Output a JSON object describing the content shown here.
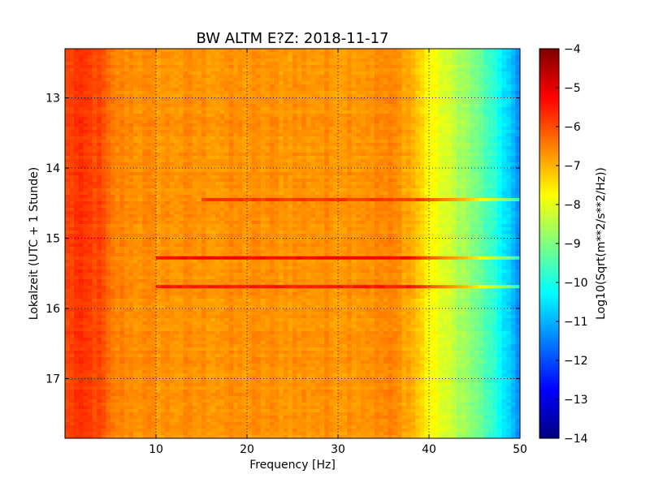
{
  "chart_data": {
    "type": "heatmap",
    "title": "BW ALTM E?Z: 2018-11-17",
    "xlabel": "Frequency [Hz]",
    "ylabel": "Lokalzeit (UTC + 1 Stunde)",
    "xlim": [
      0,
      50
    ],
    "ylim": [
      12.3,
      17.85
    ],
    "x_ticks": [
      {
        "value": 10,
        "label": "10"
      },
      {
        "value": 20,
        "label": "20"
      },
      {
        "value": 30,
        "label": "30"
      },
      {
        "value": 40,
        "label": "40"
      },
      {
        "value": 50,
        "label": "50"
      }
    ],
    "y_ticks": [
      {
        "value": 13,
        "label": "13"
      },
      {
        "value": 14,
        "label": "14"
      },
      {
        "value": 15,
        "label": "15"
      },
      {
        "value": 16,
        "label": "16"
      },
      {
        "value": 17,
        "label": "17"
      }
    ],
    "y_axis_inverted": true,
    "grid": true,
    "grid_style": "dotted",
    "colormap": "jet",
    "colorbar": {
      "label": "Log10(Sqrt(m**2/s**2/Hz))",
      "range": [
        -14,
        -4
      ],
      "ticks": [
        {
          "value": -4,
          "label": "−4"
        },
        {
          "value": -5,
          "label": "−5"
        },
        {
          "value": -6,
          "label": "−6"
        },
        {
          "value": -7,
          "label": "−7"
        },
        {
          "value": -8,
          "label": "−8"
        },
        {
          "value": -9,
          "label": "−9"
        },
        {
          "value": -10,
          "label": "−10"
        },
        {
          "value": -11,
          "label": "−11"
        },
        {
          "value": -12,
          "label": "−12"
        },
        {
          "value": -13,
          "label": "−13"
        },
        {
          "value": -14,
          "label": "−14"
        }
      ]
    },
    "spectrum_profile": [
      {
        "freq": 0,
        "value": -6.0
      },
      {
        "freq": 1,
        "value": -5.8
      },
      {
        "freq": 2,
        "value": -5.8
      },
      {
        "freq": 3,
        "value": -5.9
      },
      {
        "freq": 4,
        "value": -6.0
      },
      {
        "freq": 5,
        "value": -6.5
      },
      {
        "freq": 10,
        "value": -6.7
      },
      {
        "freq": 20,
        "value": -6.7
      },
      {
        "freq": 30,
        "value": -6.7
      },
      {
        "freq": 36,
        "value": -6.6
      },
      {
        "freq": 38,
        "value": -6.9
      },
      {
        "freq": 40,
        "value": -7.7
      },
      {
        "freq": 42,
        "value": -8.2
      },
      {
        "freq": 44,
        "value": -8.7
      },
      {
        "freq": 46,
        "value": -9.4
      },
      {
        "freq": 48,
        "value": -10.3
      },
      {
        "freq": 49,
        "value": -10.8
      },
      {
        "freq": 50,
        "value": -11.6
      }
    ],
    "horizontal_bands": [
      {
        "time": 14.45,
        "from_freq": 15,
        "to_freq": 50,
        "value": -5.8
      },
      {
        "time": 15.28,
        "from_freq": 10,
        "to_freq": 50,
        "value": -5.3
      },
      {
        "time": 15.69,
        "from_freq": 10,
        "to_freq": 50,
        "value": -5.5
      }
    ]
  }
}
